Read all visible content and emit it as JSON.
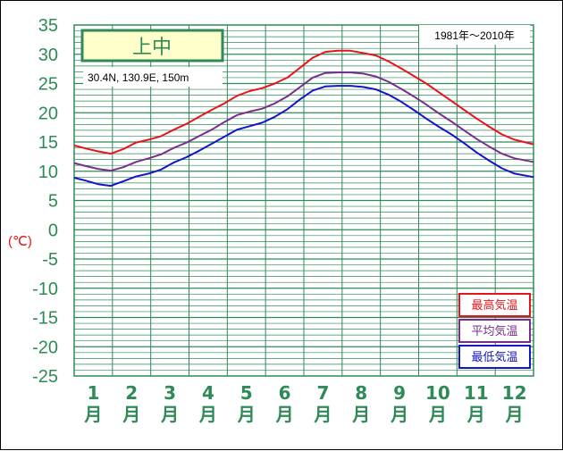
{
  "chart_data": {
    "type": "line",
    "title": "上中",
    "location": "30.4N, 130.9E, 150m",
    "period": "1981年～2010年",
    "ylabel": "(℃)",
    "ylim": [
      -25,
      35
    ],
    "yticks": [
      "35",
      "30",
      "25",
      "20",
      "15",
      "10",
      "5",
      "0",
      "-5",
      "-10",
      "-15",
      "-20",
      "-25"
    ],
    "months": [
      "1",
      "2",
      "3",
      "4",
      "5",
      "6",
      "7",
      "8",
      "9",
      "10",
      "11",
      "12"
    ],
    "month_unit": "月",
    "grid": true,
    "legend_position": "bottom-right",
    "x_unit": "day-of-year (1–365), month boundaries labeled below",
    "series": [
      {
        "name": "最高気温",
        "color": "#e8141b",
        "x": [
          1,
          10,
          20,
          30,
          40,
          50,
          60,
          70,
          80,
          90,
          100,
          110,
          120,
          130,
          140,
          150,
          160,
          170,
          180,
          190,
          200,
          210,
          220,
          230,
          240,
          250,
          260,
          270,
          280,
          290,
          300,
          310,
          320,
          330,
          340,
          350,
          365
        ],
        "values": [
          14.4,
          13.9,
          13.4,
          13.0,
          13.8,
          14.9,
          15.4,
          16.0,
          17.1,
          18.1,
          19.3,
          20.5,
          21.6,
          22.9,
          23.7,
          24.2,
          25.0,
          26.0,
          27.7,
          29.4,
          30.4,
          30.6,
          30.6,
          30.2,
          29.8,
          28.8,
          27.6,
          26.3,
          25.0,
          23.5,
          22.0,
          20.5,
          19.0,
          17.6,
          16.3,
          15.4,
          14.6
        ]
      },
      {
        "name": "平均気温",
        "color": "#7b2d8e",
        "x": [
          1,
          10,
          20,
          30,
          40,
          50,
          60,
          70,
          80,
          90,
          100,
          110,
          120,
          130,
          140,
          150,
          160,
          170,
          180,
          190,
          200,
          210,
          220,
          230,
          240,
          250,
          260,
          270,
          280,
          290,
          300,
          310,
          320,
          330,
          340,
          350,
          365
        ],
        "values": [
          11.4,
          10.9,
          10.4,
          10.1,
          10.7,
          11.6,
          12.2,
          12.9,
          14.0,
          14.9,
          16.0,
          17.1,
          18.4,
          19.6,
          20.2,
          20.7,
          21.6,
          22.8,
          24.4,
          26.0,
          26.8,
          26.9,
          26.9,
          26.7,
          26.2,
          25.3,
          24.1,
          22.8,
          21.4,
          19.9,
          18.5,
          17.0,
          15.5,
          14.2,
          13.0,
          12.2,
          11.6
        ]
      },
      {
        "name": "最低気温",
        "color": "#1414c8",
        "x": [
          1,
          10,
          20,
          30,
          40,
          50,
          60,
          70,
          80,
          90,
          100,
          110,
          120,
          130,
          140,
          150,
          160,
          170,
          180,
          190,
          200,
          210,
          220,
          230,
          240,
          250,
          260,
          270,
          280,
          290,
          300,
          310,
          320,
          330,
          340,
          350,
          365
        ],
        "values": [
          8.9,
          8.4,
          7.8,
          7.5,
          8.3,
          9.1,
          9.6,
          10.3,
          11.5,
          12.4,
          13.5,
          14.7,
          15.9,
          17.1,
          17.7,
          18.3,
          19.3,
          20.6,
          22.3,
          23.8,
          24.5,
          24.6,
          24.6,
          24.4,
          24.0,
          23.1,
          21.9,
          20.5,
          19.0,
          17.6,
          16.3,
          14.8,
          13.2,
          11.8,
          10.5,
          9.6,
          9.0
        ]
      }
    ]
  }
}
